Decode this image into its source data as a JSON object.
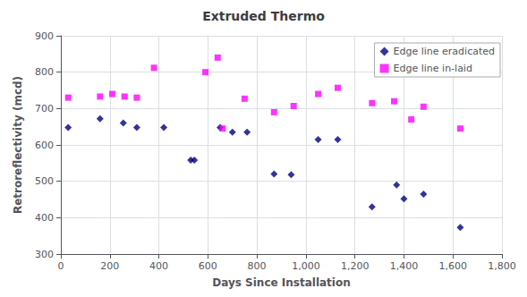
{
  "chart_data": {
    "type": "scatter",
    "title": "Extruded Thermo",
    "xlabel": "Days Since Installation",
    "ylabel": "Retroreflectivity (mcd)",
    "xlim": [
      0,
      1800
    ],
    "ylim": [
      300,
      900
    ],
    "xticks": [
      0,
      200,
      400,
      600,
      800,
      1000,
      1200,
      1400,
      1600,
      1800
    ],
    "yticks": [
      300,
      400,
      500,
      600,
      700,
      800,
      900
    ],
    "grid": true,
    "legend": "upper right",
    "series": [
      {
        "name": "Edge line eradicated",
        "color": "#000080",
        "marker": "diamond",
        "x": [
          30,
          160,
          255,
          310,
          420,
          530,
          545,
          650,
          700,
          760,
          870,
          940,
          1050,
          1130,
          1270,
          1370,
          1400,
          1480,
          1630
        ],
        "values": [
          648,
          672,
          660,
          648,
          648,
          558,
          558,
          648,
          635,
          635,
          520,
          518,
          615,
          615,
          430,
          490,
          452,
          465,
          373
        ]
      },
      {
        "name": "Edge line in-laid",
        "color": "#ff00ff",
        "marker": "square",
        "x": [
          30,
          160,
          210,
          260,
          310,
          380,
          590,
          640,
          660,
          750,
          870,
          950,
          1050,
          1130,
          1270,
          1360,
          1430,
          1480,
          1630
        ],
        "values": [
          730,
          733,
          740,
          733,
          730,
          812,
          800,
          840,
          645,
          727,
          690,
          707,
          740,
          757,
          715,
          720,
          670,
          705,
          645
        ]
      }
    ]
  }
}
